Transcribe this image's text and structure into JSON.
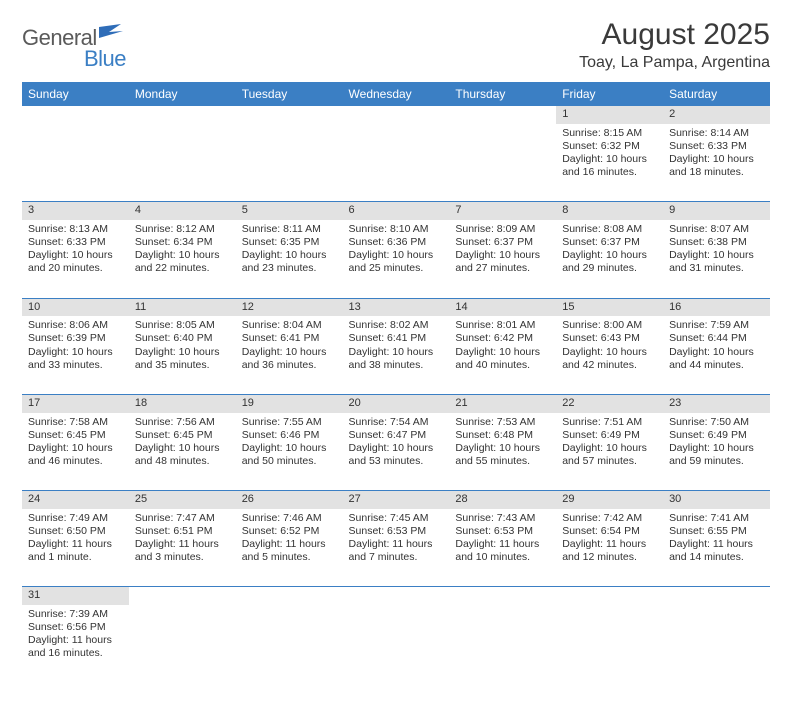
{
  "logo": {
    "text1": "General",
    "text2": "Blue"
  },
  "title": "August 2025",
  "location": "Toay, La Pampa, Argentina",
  "colors": {
    "header_bg": "#3b7fc4",
    "header_fg": "#ffffff",
    "daynum_bg": "#e2e2e2",
    "border": "#3b7fc4",
    "text": "#333333",
    "logo_gray": "#5a5a5a",
    "logo_blue": "#3b7fc4"
  },
  "day_headers": [
    "Sunday",
    "Monday",
    "Tuesday",
    "Wednesday",
    "Thursday",
    "Friday",
    "Saturday"
  ],
  "weeks": [
    [
      null,
      null,
      null,
      null,
      null,
      {
        "n": "1",
        "sr": "Sunrise: 8:15 AM",
        "ss": "Sunset: 6:32 PM",
        "dl": "Daylight: 10 hours and 16 minutes."
      },
      {
        "n": "2",
        "sr": "Sunrise: 8:14 AM",
        "ss": "Sunset: 6:33 PM",
        "dl": "Daylight: 10 hours and 18 minutes."
      }
    ],
    [
      {
        "n": "3",
        "sr": "Sunrise: 8:13 AM",
        "ss": "Sunset: 6:33 PM",
        "dl": "Daylight: 10 hours and 20 minutes."
      },
      {
        "n": "4",
        "sr": "Sunrise: 8:12 AM",
        "ss": "Sunset: 6:34 PM",
        "dl": "Daylight: 10 hours and 22 minutes."
      },
      {
        "n": "5",
        "sr": "Sunrise: 8:11 AM",
        "ss": "Sunset: 6:35 PM",
        "dl": "Daylight: 10 hours and 23 minutes."
      },
      {
        "n": "6",
        "sr": "Sunrise: 8:10 AM",
        "ss": "Sunset: 6:36 PM",
        "dl": "Daylight: 10 hours and 25 minutes."
      },
      {
        "n": "7",
        "sr": "Sunrise: 8:09 AM",
        "ss": "Sunset: 6:37 PM",
        "dl": "Daylight: 10 hours and 27 minutes."
      },
      {
        "n": "8",
        "sr": "Sunrise: 8:08 AM",
        "ss": "Sunset: 6:37 PM",
        "dl": "Daylight: 10 hours and 29 minutes."
      },
      {
        "n": "9",
        "sr": "Sunrise: 8:07 AM",
        "ss": "Sunset: 6:38 PM",
        "dl": "Daylight: 10 hours and 31 minutes."
      }
    ],
    [
      {
        "n": "10",
        "sr": "Sunrise: 8:06 AM",
        "ss": "Sunset: 6:39 PM",
        "dl": "Daylight: 10 hours and 33 minutes."
      },
      {
        "n": "11",
        "sr": "Sunrise: 8:05 AM",
        "ss": "Sunset: 6:40 PM",
        "dl": "Daylight: 10 hours and 35 minutes."
      },
      {
        "n": "12",
        "sr": "Sunrise: 8:04 AM",
        "ss": "Sunset: 6:41 PM",
        "dl": "Daylight: 10 hours and 36 minutes."
      },
      {
        "n": "13",
        "sr": "Sunrise: 8:02 AM",
        "ss": "Sunset: 6:41 PM",
        "dl": "Daylight: 10 hours and 38 minutes."
      },
      {
        "n": "14",
        "sr": "Sunrise: 8:01 AM",
        "ss": "Sunset: 6:42 PM",
        "dl": "Daylight: 10 hours and 40 minutes."
      },
      {
        "n": "15",
        "sr": "Sunrise: 8:00 AM",
        "ss": "Sunset: 6:43 PM",
        "dl": "Daylight: 10 hours and 42 minutes."
      },
      {
        "n": "16",
        "sr": "Sunrise: 7:59 AM",
        "ss": "Sunset: 6:44 PM",
        "dl": "Daylight: 10 hours and 44 minutes."
      }
    ],
    [
      {
        "n": "17",
        "sr": "Sunrise: 7:58 AM",
        "ss": "Sunset: 6:45 PM",
        "dl": "Daylight: 10 hours and 46 minutes."
      },
      {
        "n": "18",
        "sr": "Sunrise: 7:56 AM",
        "ss": "Sunset: 6:45 PM",
        "dl": "Daylight: 10 hours and 48 minutes."
      },
      {
        "n": "19",
        "sr": "Sunrise: 7:55 AM",
        "ss": "Sunset: 6:46 PM",
        "dl": "Daylight: 10 hours and 50 minutes."
      },
      {
        "n": "20",
        "sr": "Sunrise: 7:54 AM",
        "ss": "Sunset: 6:47 PM",
        "dl": "Daylight: 10 hours and 53 minutes."
      },
      {
        "n": "21",
        "sr": "Sunrise: 7:53 AM",
        "ss": "Sunset: 6:48 PM",
        "dl": "Daylight: 10 hours and 55 minutes."
      },
      {
        "n": "22",
        "sr": "Sunrise: 7:51 AM",
        "ss": "Sunset: 6:49 PM",
        "dl": "Daylight: 10 hours and 57 minutes."
      },
      {
        "n": "23",
        "sr": "Sunrise: 7:50 AM",
        "ss": "Sunset: 6:49 PM",
        "dl": "Daylight: 10 hours and 59 minutes."
      }
    ],
    [
      {
        "n": "24",
        "sr": "Sunrise: 7:49 AM",
        "ss": "Sunset: 6:50 PM",
        "dl": "Daylight: 11 hours and 1 minute."
      },
      {
        "n": "25",
        "sr": "Sunrise: 7:47 AM",
        "ss": "Sunset: 6:51 PM",
        "dl": "Daylight: 11 hours and 3 minutes."
      },
      {
        "n": "26",
        "sr": "Sunrise: 7:46 AM",
        "ss": "Sunset: 6:52 PM",
        "dl": "Daylight: 11 hours and 5 minutes."
      },
      {
        "n": "27",
        "sr": "Sunrise: 7:45 AM",
        "ss": "Sunset: 6:53 PM",
        "dl": "Daylight: 11 hours and 7 minutes."
      },
      {
        "n": "28",
        "sr": "Sunrise: 7:43 AM",
        "ss": "Sunset: 6:53 PM",
        "dl": "Daylight: 11 hours and 10 minutes."
      },
      {
        "n": "29",
        "sr": "Sunrise: 7:42 AM",
        "ss": "Sunset: 6:54 PM",
        "dl": "Daylight: 11 hours and 12 minutes."
      },
      {
        "n": "30",
        "sr": "Sunrise: 7:41 AM",
        "ss": "Sunset: 6:55 PM",
        "dl": "Daylight: 11 hours and 14 minutes."
      }
    ],
    [
      {
        "n": "31",
        "sr": "Sunrise: 7:39 AM",
        "ss": "Sunset: 6:56 PM",
        "dl": "Daylight: 11 hours and 16 minutes."
      },
      null,
      null,
      null,
      null,
      null,
      null
    ]
  ]
}
